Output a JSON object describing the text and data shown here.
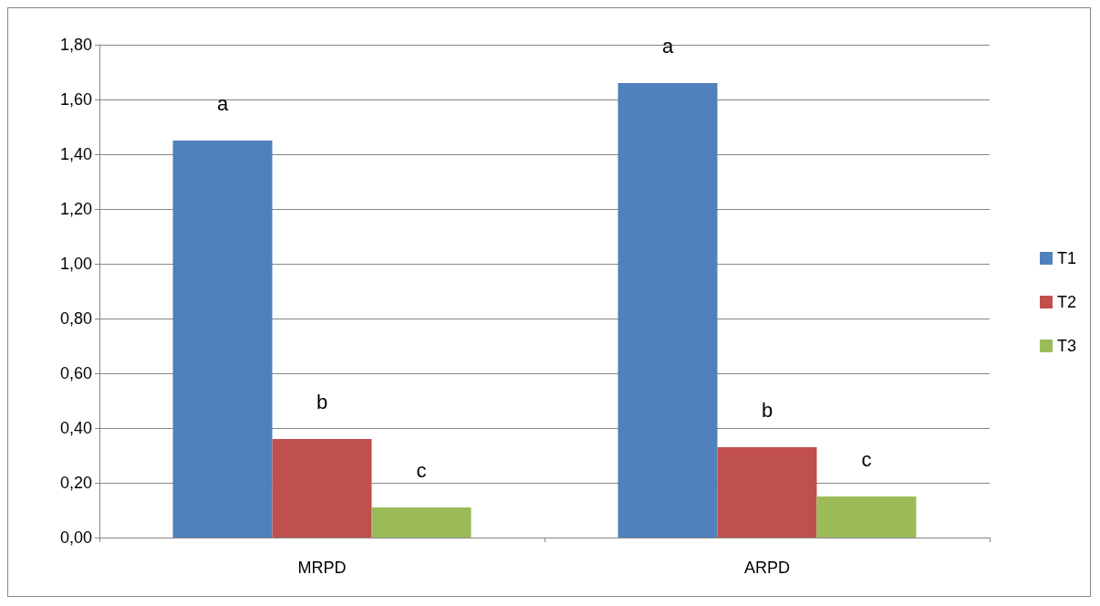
{
  "chart_data": {
    "type": "bar",
    "categories": [
      "MRPD",
      "ARPD"
    ],
    "series": [
      {
        "name": "T1",
        "color": "#4f81bd",
        "values": [
          1.45,
          1.66
        ],
        "value_labels": [
          "a",
          "a"
        ]
      },
      {
        "name": "T2",
        "color": "#c0504d",
        "values": [
          0.36,
          0.33
        ],
        "value_labels": [
          "b",
          "b"
        ]
      },
      {
        "name": "T3",
        "color": "#9bbb59",
        "values": [
          0.11,
          0.15
        ],
        "value_labels": [
          "c",
          "c"
        ]
      }
    ],
    "ylim": [
      0,
      1.8
    ],
    "yticks": [
      {
        "value": 0,
        "label": "0,00"
      },
      {
        "value": 0.2,
        "label": "0,20"
      },
      {
        "value": 0.4,
        "label": "0,40"
      },
      {
        "value": 0.6,
        "label": "0,60"
      },
      {
        "value": 0.8,
        "label": "0,80"
      },
      {
        "value": 1,
        "label": "1,00"
      },
      {
        "value": 1.2,
        "label": "1,20"
      },
      {
        "value": 1.4,
        "label": "1,40"
      },
      {
        "value": 1.6,
        "label": "1,60"
      },
      {
        "value": 1.8,
        "label": "1,80"
      }
    ],
    "grid": "y",
    "legend": "right"
  }
}
